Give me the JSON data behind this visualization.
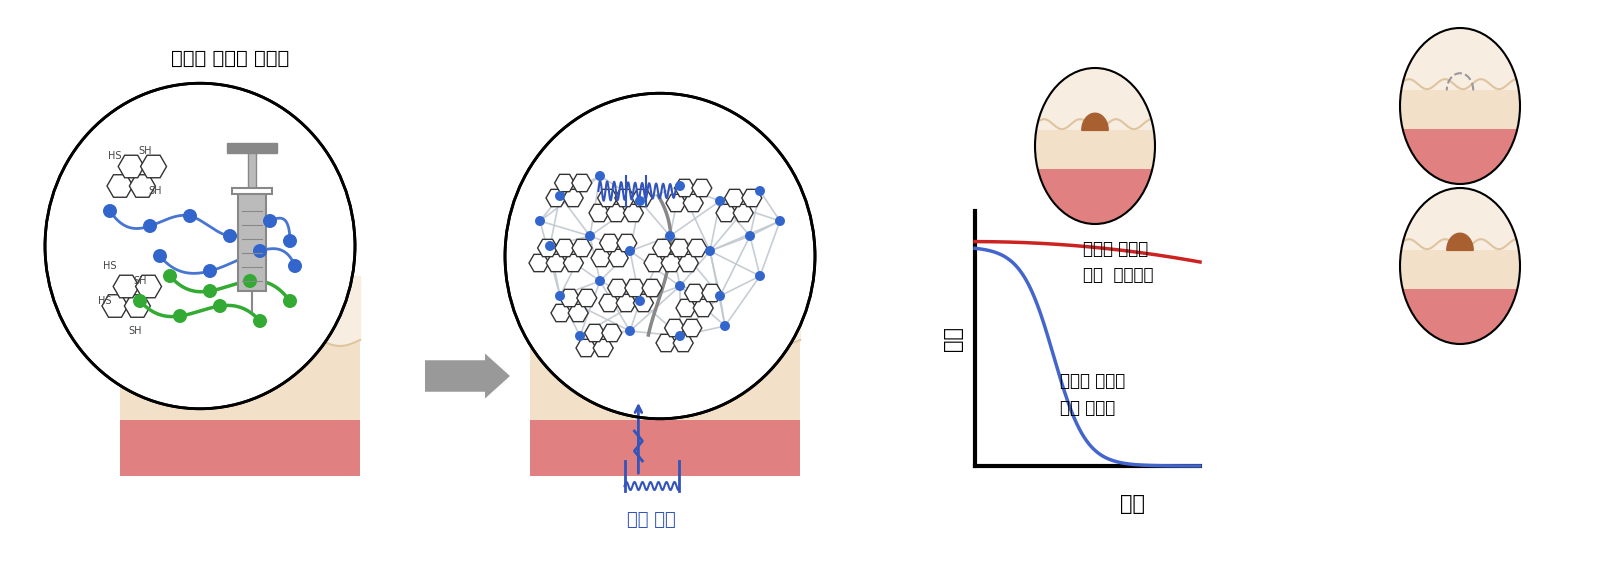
{
  "title_text": "주사형 전도성 수화젤",
  "biosignal_label": "생체 신호",
  "ylabel": "기능",
  "xlabel": "시간",
  "label_nondeg": "장기간 사용을\n위한  비분해성",
  "label_deg": "단기간 사용을\n위한 분해성",
  "red_line_color": "#cc2222",
  "blue_line_color": "#4466cc",
  "bg_color": "#ffffff",
  "skin_top_color": "#dfc4a0",
  "skin_mid_color": "#f2e0c8",
  "skin_light_color": "#f7ede0",
  "skin_red_color": "#e08080",
  "bump_color": "#a86030",
  "arrow_color": "#888888",
  "blue_signal_color": "#3355bb",
  "polymer_blue": "#3366cc",
  "polymer_green": "#33aa33",
  "graphene_gray": "#888888",
  "network_line_color": "#aabbcc",
  "hex_fill": "#e8e8e8",
  "hex_edge": "#555555",
  "syringe_gray": "#bbbbbb",
  "syringe_dark": "#888888"
}
